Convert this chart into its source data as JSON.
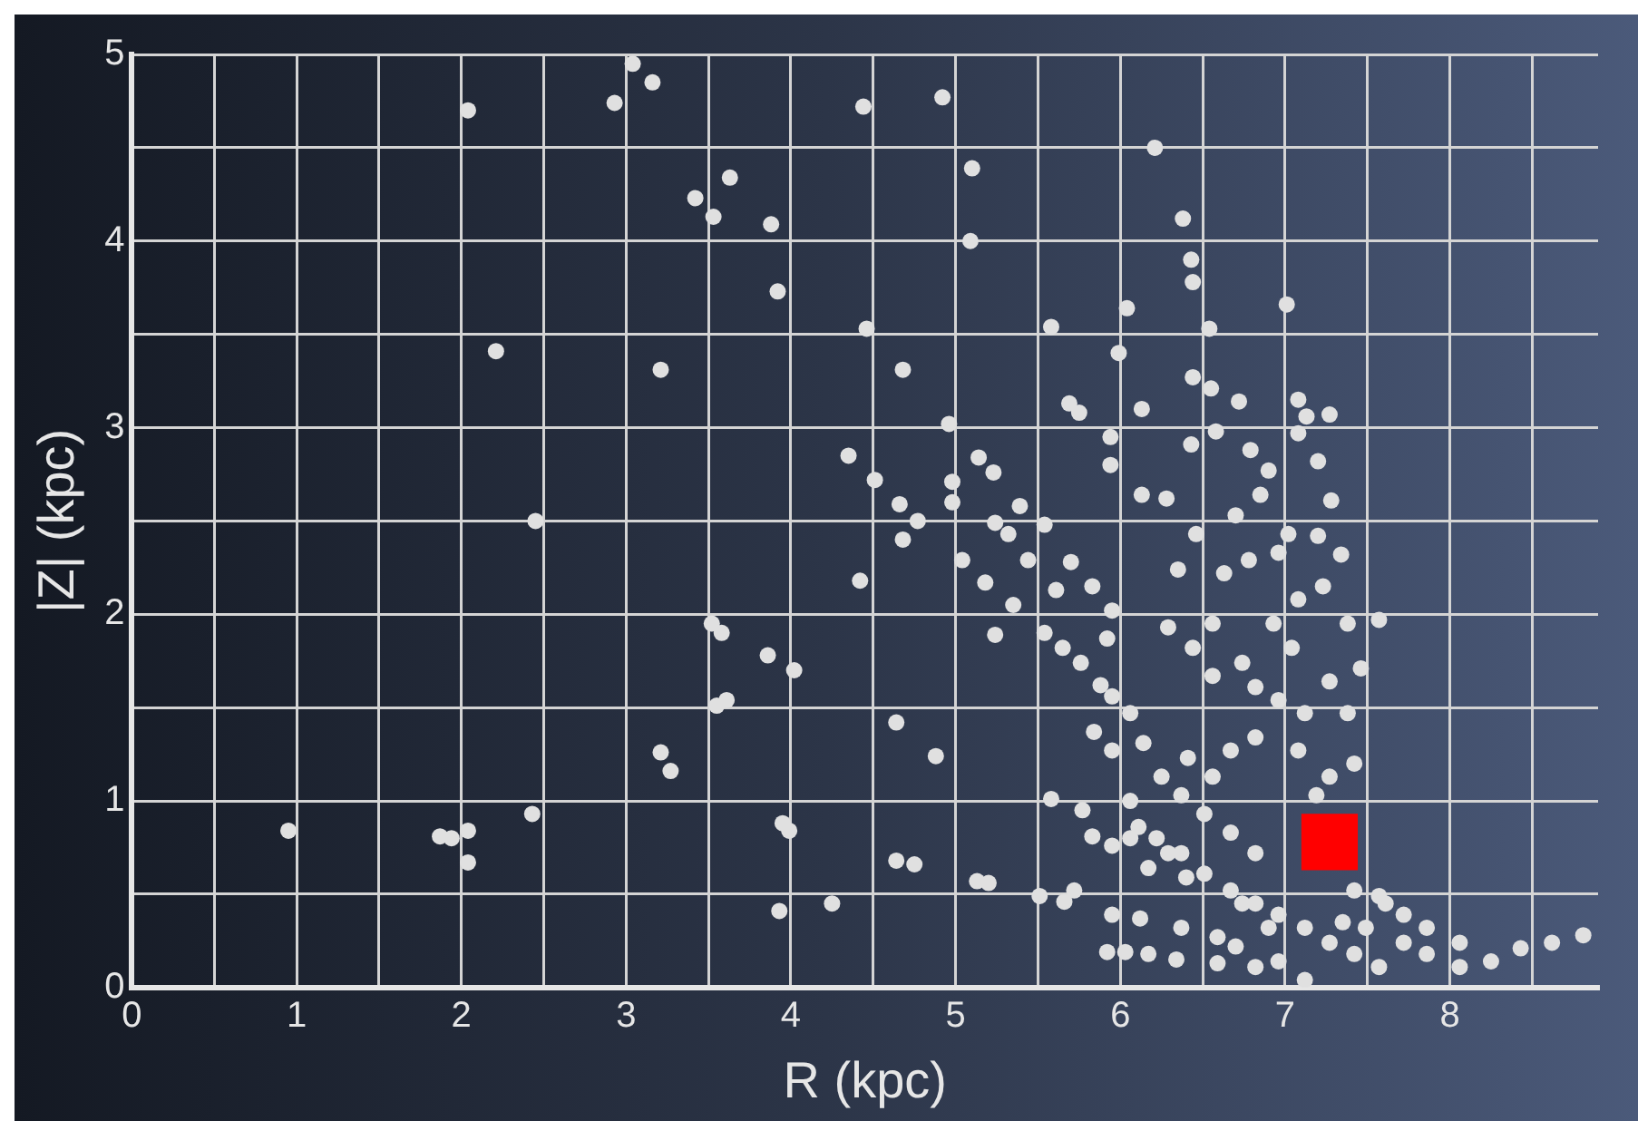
{
  "chart_data": {
    "type": "scatter",
    "xlabel": "R (kpc)",
    "ylabel": "|Z| (kpc)",
    "xlim": [
      0,
      8.9
    ],
    "ylim": [
      0,
      5
    ],
    "xticks": [
      0,
      {
        "value": 0.5,
        "label": null
      },
      1,
      {
        "value": 1.5,
        "label": null
      },
      2,
      {
        "value": 2.5,
        "label": null
      },
      3,
      {
        "value": 3.5,
        "label": null
      },
      4,
      {
        "value": 4.5,
        "label": null
      },
      5,
      {
        "value": 5.5,
        "label": null
      },
      6,
      {
        "value": 6.5,
        "label": null
      },
      7,
      {
        "value": 7.5,
        "label": null
      },
      8,
      {
        "value": 8.5,
        "label": null
      }
    ],
    "yticks": [
      0,
      {
        "value": 0.5,
        "label": null
      },
      1,
      {
        "value": 1.5,
        "label": null
      },
      2,
      {
        "value": 2.5,
        "label": null
      },
      3,
      {
        "value": 3.5,
        "label": null
      },
      4,
      {
        "value": 4.5,
        "label": null
      },
      5
    ],
    "grid": true,
    "legend": false,
    "marker": "circle",
    "series": [
      {
        "color": "#e0e0e0",
        "x": [
          0.95,
          1.87,
          1.94,
          2.04,
          2.04,
          2.43,
          2.04,
          2.21,
          2.45,
          2.93,
          3.04,
          3.16,
          3.63,
          3.42,
          3.53,
          3.88,
          3.92,
          3.21,
          3.52,
          3.58,
          3.86,
          4.02,
          3.55,
          3.61,
          3.21,
          3.27,
          3.95,
          3.99,
          3.93,
          4.25,
          4.44,
          4.92,
          5.1,
          6.21,
          6.38,
          6.43,
          6.44,
          5.09,
          7.01,
          6.04,
          4.46,
          5.58,
          6.54,
          4.68,
          5.99,
          6.44,
          6.55,
          6.72,
          5.69,
          5.75,
          6.13,
          7.08,
          7.13,
          7.27,
          4.96,
          5.94,
          6.58,
          6.43,
          7.08,
          4.35,
          4.51,
          5.14,
          5.23,
          4.98,
          5.94,
          6.79,
          6.9,
          7.2,
          4.66,
          4.98,
          4.77,
          6.13,
          6.28,
          6.85,
          7.28,
          4.68,
          4.42,
          5.39,
          5.24,
          5.54,
          5.32,
          6.7,
          6.46,
          7.02,
          7.2,
          5.04,
          5.18,
          5.44,
          5.7,
          6.35,
          6.63,
          6.78,
          6.96,
          7.34,
          5.24,
          4.64,
          4.88,
          5.35,
          5.61,
          5.83,
          5.95,
          5.54,
          5.65,
          5.76,
          5.88,
          5.95,
          6.06,
          5.92,
          6.29,
          6.44,
          6.56,
          6.56,
          6.74,
          6.82,
          6.96,
          7.12,
          6.93,
          7.08,
          7.23,
          7.38,
          7.46,
          7.57,
          7.04,
          7.27,
          7.38,
          7.42,
          7.27,
          7.08,
          6.82,
          6.67,
          6.56,
          6.41,
          6.37,
          6.51,
          6.67,
          6.82,
          6.25,
          6.14,
          6.06,
          5.84,
          5.95,
          6.11,
          6.22,
          6.37,
          6.51,
          6.67,
          6.82,
          6.96,
          7.12,
          7.27,
          7.42,
          7.57,
          7.72,
          7.86,
          8.06,
          8.25,
          8.43,
          8.62,
          8.81,
          7.61,
          7.72,
          7.86,
          8.06,
          7.42,
          5.58,
          5.77,
          5.83,
          5.95,
          6.06,
          6.17,
          6.29,
          6.4,
          4.64,
          4.75,
          5.13,
          5.2,
          5.51,
          5.66,
          5.72,
          5.95,
          6.12,
          6.37,
          5.92,
          6.03,
          6.17,
          6.34,
          6.59,
          6.7,
          6.59,
          6.82,
          6.96,
          7.12,
          6.74,
          6.9,
          7.35,
          7.49,
          7.57,
          7.19
        ],
        "values": [
          0.84,
          0.81,
          0.8,
          0.84,
          0.67,
          0.93,
          4.7,
          3.41,
          2.5,
          4.74,
          4.95,
          4.85,
          4.34,
          4.23,
          4.13,
          4.09,
          3.73,
          3.31,
          1.95,
          1.9,
          1.78,
          1.7,
          1.51,
          1.54,
          1.26,
          1.16,
          0.88,
          0.84,
          0.41,
          0.45,
          4.72,
          4.77,
          4.39,
          4.5,
          4.12,
          3.9,
          3.78,
          4.0,
          3.66,
          3.64,
          3.53,
          3.54,
          3.53,
          3.31,
          3.4,
          3.27,
          3.21,
          3.14,
          3.13,
          3.08,
          3.1,
          3.15,
          3.06,
          3.07,
          3.02,
          2.95,
          2.98,
          2.91,
          2.97,
          2.85,
          2.72,
          2.84,
          2.76,
          2.71,
          2.8,
          2.88,
          2.77,
          2.82,
          2.59,
          2.6,
          2.5,
          2.64,
          2.62,
          2.64,
          2.61,
          2.4,
          2.18,
          2.58,
          2.49,
          2.48,
          2.43,
          2.53,
          2.43,
          2.43,
          2.42,
          2.29,
          2.17,
          2.29,
          2.28,
          2.24,
          2.22,
          2.29,
          2.33,
          2.32,
          1.89,
          1.42,
          1.24,
          2.05,
          2.13,
          2.15,
          2.02,
          1.9,
          1.82,
          1.74,
          1.62,
          1.56,
          1.47,
          1.87,
          1.93,
          1.82,
          1.95,
          1.67,
          1.74,
          1.61,
          1.54,
          1.47,
          1.95,
          2.08,
          2.15,
          1.95,
          1.71,
          1.97,
          1.82,
          1.64,
          1.47,
          1.2,
          1.13,
          1.27,
          1.34,
          1.27,
          1.13,
          1.23,
          1.03,
          0.93,
          0.83,
          0.72,
          1.13,
          1.31,
          1.0,
          1.37,
          1.27,
          0.86,
          0.8,
          0.72,
          0.61,
          0.52,
          0.45,
          0.39,
          0.32,
          0.24,
          0.18,
          0.11,
          0.24,
          0.18,
          0.11,
          0.14,
          0.21,
          0.24,
          0.28,
          0.45,
          0.39,
          0.32,
          0.24,
          0.52,
          1.01,
          0.95,
          0.81,
          0.76,
          0.8,
          0.64,
          0.72,
          0.59,
          0.68,
          0.66,
          0.57,
          0.56,
          0.49,
          0.46,
          0.52,
          0.39,
          0.37,
          0.32,
          0.19,
          0.19,
          0.18,
          0.15,
          0.27,
          0.22,
          0.13,
          0.11,
          0.14,
          0.04,
          0.45,
          0.32,
          0.35,
          0.32,
          0.49,
          1.03
        ]
      },
      {
        "type": "scatter",
        "marker": "square",
        "color": "#ff0000",
        "x": [
          7.27
        ],
        "values": [
          0.78
        ]
      }
    ]
  }
}
